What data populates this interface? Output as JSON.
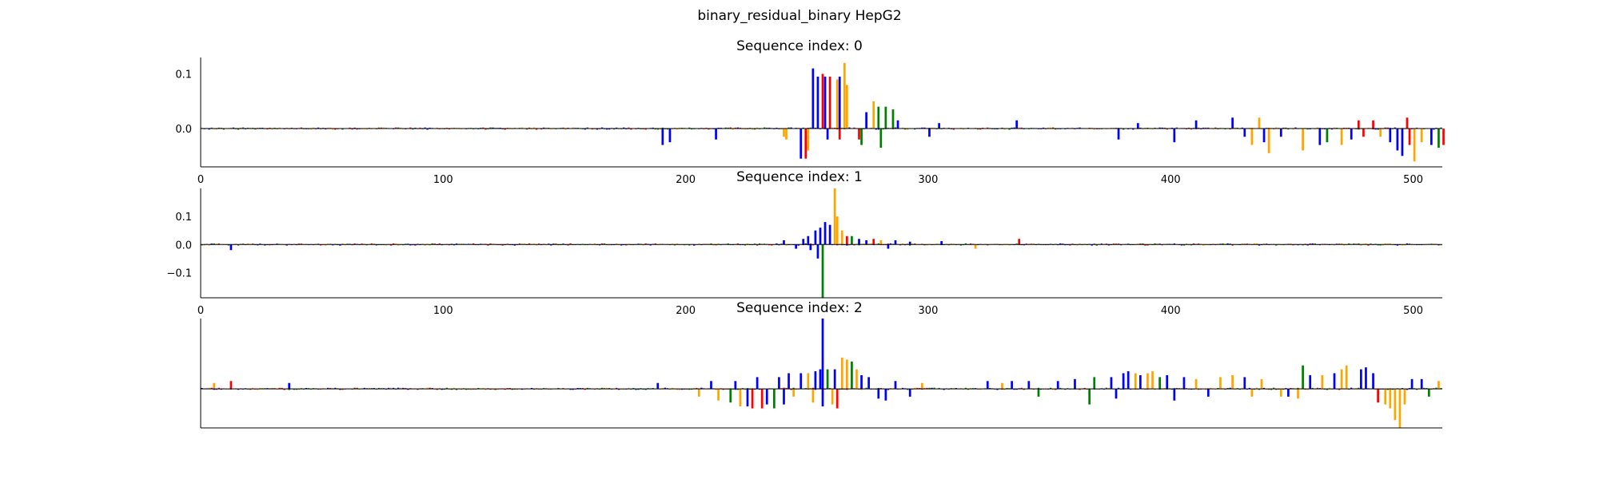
{
  "figure": {
    "suptitle": "binary_residual_binary HepG2"
  },
  "colors": {
    "A": "#008000",
    "C": "#0000ff",
    "G": "#ffa500",
    "T": "#ff0000",
    "axis": "#000000",
    "baseline": "#000000"
  },
  "chart_data": [
    {
      "type": "bar",
      "title": "Sequence index: 0",
      "xlim": [
        0,
        512
      ],
      "ylim": [
        -0.07,
        0.13
      ],
      "xticks": [
        "0",
        "100",
        "200",
        "300",
        "400",
        "500"
      ],
      "yticks": [
        "0.0",
        "0.1"
      ],
      "show_x_axis": true,
      "show_y_axis_labels": true,
      "peaks": [
        {
          "x": 190,
          "value": -0.03,
          "base": "C"
        },
        {
          "x": 193,
          "value": -0.025,
          "base": "C"
        },
        {
          "x": 212,
          "value": -0.02,
          "base": "C"
        },
        {
          "x": 240,
          "value": -0.015,
          "base": "G"
        },
        {
          "x": 241,
          "value": -0.02,
          "base": "G"
        },
        {
          "x": 247,
          "value": -0.055,
          "base": "C"
        },
        {
          "x": 249,
          "value": -0.055,
          "base": "T"
        },
        {
          "x": 250,
          "value": -0.04,
          "base": "G"
        },
        {
          "x": 252,
          "value": 0.11,
          "base": "C"
        },
        {
          "x": 254,
          "value": 0.095,
          "base": "C"
        },
        {
          "x": 256,
          "value": 0.1,
          "base": "T"
        },
        {
          "x": 257,
          "value": 0.095,
          "base": "C"
        },
        {
          "x": 259,
          "value": 0.095,
          "base": "T"
        },
        {
          "x": 262,
          "value": 0.09,
          "base": "G"
        },
        {
          "x": 263,
          "value": 0.095,
          "base": "C"
        },
        {
          "x": 265,
          "value": 0.12,
          "base": "G"
        },
        {
          "x": 266,
          "value": 0.08,
          "base": "G"
        },
        {
          "x": 258,
          "value": -0.02,
          "base": "C"
        },
        {
          "x": 263,
          "value": -0.02,
          "base": "T"
        },
        {
          "x": 271,
          "value": -0.02,
          "base": "T"
        },
        {
          "x": 272,
          "value": -0.03,
          "base": "A"
        },
        {
          "x": 274,
          "value": 0.03,
          "base": "C"
        },
        {
          "x": 277,
          "value": 0.05,
          "base": "G"
        },
        {
          "x": 279,
          "value": 0.04,
          "base": "A"
        },
        {
          "x": 280,
          "value": -0.035,
          "base": "A"
        },
        {
          "x": 282,
          "value": 0.04,
          "base": "A"
        },
        {
          "x": 285,
          "value": 0.035,
          "base": "A"
        },
        {
          "x": 287,
          "value": 0.015,
          "base": "C"
        },
        {
          "x": 300,
          "value": -0.015,
          "base": "C"
        },
        {
          "x": 304,
          "value": 0.01,
          "base": "C"
        },
        {
          "x": 336,
          "value": 0.015,
          "base": "C"
        },
        {
          "x": 378,
          "value": -0.02,
          "base": "C"
        },
        {
          "x": 386,
          "value": 0.01,
          "base": "C"
        },
        {
          "x": 401,
          "value": -0.025,
          "base": "C"
        },
        {
          "x": 410,
          "value": 0.015,
          "base": "C"
        },
        {
          "x": 425,
          "value": 0.02,
          "base": "C"
        },
        {
          "x": 430,
          "value": -0.015,
          "base": "C"
        },
        {
          "x": 436,
          "value": 0.02,
          "base": "G"
        },
        {
          "x": 433,
          "value": -0.03,
          "base": "G"
        },
        {
          "x": 438,
          "value": -0.025,
          "base": "C"
        },
        {
          "x": 440,
          "value": -0.045,
          "base": "G"
        },
        {
          "x": 445,
          "value": -0.015,
          "base": "C"
        },
        {
          "x": 454,
          "value": -0.04,
          "base": "G"
        },
        {
          "x": 461,
          "value": -0.03,
          "base": "C"
        },
        {
          "x": 464,
          "value": -0.025,
          "base": "A"
        },
        {
          "x": 470,
          "value": -0.03,
          "base": "G"
        },
        {
          "x": 474,
          "value": -0.02,
          "base": "C"
        },
        {
          "x": 477,
          "value": 0.015,
          "base": "T"
        },
        {
          "x": 479,
          "value": -0.015,
          "base": "T"
        },
        {
          "x": 483,
          "value": 0.015,
          "base": "T"
        },
        {
          "x": 486,
          "value": -0.015,
          "base": "G"
        },
        {
          "x": 490,
          "value": -0.025,
          "base": "C"
        },
        {
          "x": 493,
          "value": -0.04,
          "base": "C"
        },
        {
          "x": 495,
          "value": -0.05,
          "base": "C"
        },
        {
          "x": 497,
          "value": 0.02,
          "base": "T"
        },
        {
          "x": 498,
          "value": -0.03,
          "base": "T"
        },
        {
          "x": 500,
          "value": -0.06,
          "base": "G"
        },
        {
          "x": 503,
          "value": -0.025,
          "base": "G"
        },
        {
          "x": 507,
          "value": -0.03,
          "base": "C"
        },
        {
          "x": 510,
          "value": -0.035,
          "base": "A"
        },
        {
          "x": 512,
          "value": -0.03,
          "base": "T"
        }
      ]
    },
    {
      "type": "bar",
      "title": "Sequence index: 1",
      "xlim": [
        0,
        512
      ],
      "ylim": [
        -0.19,
        0.2
      ],
      "xticks": [
        "0",
        "100",
        "200",
        "300",
        "400",
        "500"
      ],
      "yticks": [
        "−0.1",
        "0.0",
        "0.1"
      ],
      "show_x_axis": true,
      "show_y_axis_labels": true,
      "peaks": [
        {
          "x": 12,
          "value": -0.02,
          "base": "C"
        },
        {
          "x": 240,
          "value": 0.015,
          "base": "C"
        },
        {
          "x": 245,
          "value": -0.015,
          "base": "C"
        },
        {
          "x": 248,
          "value": 0.02,
          "base": "C"
        },
        {
          "x": 250,
          "value": 0.03,
          "base": "C"
        },
        {
          "x": 251,
          "value": -0.02,
          "base": "C"
        },
        {
          "x": 253,
          "value": 0.05,
          "base": "C"
        },
        {
          "x": 254,
          "value": -0.05,
          "base": "C"
        },
        {
          "x": 255,
          "value": 0.06,
          "base": "C"
        },
        {
          "x": 256,
          "value": -0.19,
          "base": "A"
        },
        {
          "x": 257,
          "value": 0.08,
          "base": "C"
        },
        {
          "x": 259,
          "value": 0.07,
          "base": "C"
        },
        {
          "x": 261,
          "value": 0.2,
          "base": "G"
        },
        {
          "x": 262,
          "value": 0.1,
          "base": "G"
        },
        {
          "x": 264,
          "value": 0.05,
          "base": "G"
        },
        {
          "x": 266,
          "value": 0.03,
          "base": "T"
        },
        {
          "x": 268,
          "value": 0.03,
          "base": "A"
        },
        {
          "x": 271,
          "value": 0.02,
          "base": "C"
        },
        {
          "x": 274,
          "value": 0.015,
          "base": "C"
        },
        {
          "x": 277,
          "value": 0.02,
          "base": "T"
        },
        {
          "x": 280,
          "value": 0.015,
          "base": "G"
        },
        {
          "x": 283,
          "value": -0.015,
          "base": "C"
        },
        {
          "x": 286,
          "value": 0.015,
          "base": "C"
        },
        {
          "x": 292,
          "value": 0.01,
          "base": "C"
        },
        {
          "x": 305,
          "value": 0.012,
          "base": "C"
        },
        {
          "x": 319,
          "value": -0.015,
          "base": "G"
        },
        {
          "x": 337,
          "value": 0.02,
          "base": "T"
        }
      ]
    },
    {
      "type": "bar",
      "title": "Sequence index: 2",
      "xlim": [
        0,
        512
      ],
      "ylim": [
        -0.1,
        0.18
      ],
      "xticks": [],
      "yticks": [],
      "show_x_axis": false,
      "show_y_axis_labels": false,
      "peaks": [
        {
          "x": 5,
          "value": 0.015,
          "base": "G"
        },
        {
          "x": 12,
          "value": 0.02,
          "base": "T"
        },
        {
          "x": 36,
          "value": 0.015,
          "base": "C"
        },
        {
          "x": 188,
          "value": 0.015,
          "base": "C"
        },
        {
          "x": 205,
          "value": -0.02,
          "base": "G"
        },
        {
          "x": 210,
          "value": 0.02,
          "base": "C"
        },
        {
          "x": 213,
          "value": -0.03,
          "base": "G"
        },
        {
          "x": 218,
          "value": -0.035,
          "base": "A"
        },
        {
          "x": 220,
          "value": 0.02,
          "base": "C"
        },
        {
          "x": 222,
          "value": -0.045,
          "base": "G"
        },
        {
          "x": 225,
          "value": -0.045,
          "base": "C"
        },
        {
          "x": 227,
          "value": -0.05,
          "base": "T"
        },
        {
          "x": 229,
          "value": 0.03,
          "base": "C"
        },
        {
          "x": 231,
          "value": -0.05,
          "base": "T"
        },
        {
          "x": 233,
          "value": -0.04,
          "base": "C"
        },
        {
          "x": 236,
          "value": -0.05,
          "base": "A"
        },
        {
          "x": 238,
          "value": 0.03,
          "base": "C"
        },
        {
          "x": 240,
          "value": -0.04,
          "base": "C"
        },
        {
          "x": 242,
          "value": 0.04,
          "base": "C"
        },
        {
          "x": 244,
          "value": -0.02,
          "base": "G"
        },
        {
          "x": 247,
          "value": 0.04,
          "base": "C"
        },
        {
          "x": 250,
          "value": 0.04,
          "base": "G"
        },
        {
          "x": 252,
          "value": -0.035,
          "base": "G"
        },
        {
          "x": 253,
          "value": 0.045,
          "base": "C"
        },
        {
          "x": 255,
          "value": 0.05,
          "base": "C"
        },
        {
          "x": 256,
          "value": -0.045,
          "base": "C"
        },
        {
          "x": 258,
          "value": 0.05,
          "base": "A"
        },
        {
          "x": 260,
          "value": -0.04,
          "base": "G"
        },
        {
          "x": 261,
          "value": 0.05,
          "base": "C"
        },
        {
          "x": 262,
          "value": -0.05,
          "base": "T"
        },
        {
          "x": 256,
          "value": 0.18,
          "base": "C"
        },
        {
          "x": 264,
          "value": 0.08,
          "base": "G"
        },
        {
          "x": 266,
          "value": 0.075,
          "base": "G"
        },
        {
          "x": 268,
          "value": 0.07,
          "base": "A"
        },
        {
          "x": 270,
          "value": 0.05,
          "base": "G"
        },
        {
          "x": 272,
          "value": 0.035,
          "base": "C"
        },
        {
          "x": 275,
          "value": 0.03,
          "base": "C"
        },
        {
          "x": 279,
          "value": -0.025,
          "base": "C"
        },
        {
          "x": 282,
          "value": -0.03,
          "base": "C"
        },
        {
          "x": 286,
          "value": 0.02,
          "base": "C"
        },
        {
          "x": 292,
          "value": -0.02,
          "base": "C"
        },
        {
          "x": 297,
          "value": 0.015,
          "base": "G"
        },
        {
          "x": 324,
          "value": 0.02,
          "base": "C"
        },
        {
          "x": 330,
          "value": 0.015,
          "base": "G"
        },
        {
          "x": 334,
          "value": 0.02,
          "base": "C"
        },
        {
          "x": 341,
          "value": 0.02,
          "base": "C"
        },
        {
          "x": 345,
          "value": -0.02,
          "base": "A"
        },
        {
          "x": 353,
          "value": 0.02,
          "base": "C"
        },
        {
          "x": 360,
          "value": 0.025,
          "base": "C"
        },
        {
          "x": 366,
          "value": -0.04,
          "base": "A"
        },
        {
          "x": 368,
          "value": 0.03,
          "base": "A"
        },
        {
          "x": 375,
          "value": 0.03,
          "base": "C"
        },
        {
          "x": 377,
          "value": -0.025,
          "base": "C"
        },
        {
          "x": 380,
          "value": 0.04,
          "base": "C"
        },
        {
          "x": 382,
          "value": 0.045,
          "base": "C"
        },
        {
          "x": 385,
          "value": 0.04,
          "base": "G"
        },
        {
          "x": 387,
          "value": 0.035,
          "base": "C"
        },
        {
          "x": 390,
          "value": 0.04,
          "base": "G"
        },
        {
          "x": 392,
          "value": 0.045,
          "base": "G"
        },
        {
          "x": 395,
          "value": 0.03,
          "base": "A"
        },
        {
          "x": 398,
          "value": 0.035,
          "base": "C"
        },
        {
          "x": 401,
          "value": -0.03,
          "base": "C"
        },
        {
          "x": 405,
          "value": 0.03,
          "base": "C"
        },
        {
          "x": 410,
          "value": 0.025,
          "base": "G"
        },
        {
          "x": 415,
          "value": -0.02,
          "base": "C"
        },
        {
          "x": 420,
          "value": 0.03,
          "base": "G"
        },
        {
          "x": 425,
          "value": 0.035,
          "base": "G"
        },
        {
          "x": 430,
          "value": 0.03,
          "base": "C"
        },
        {
          "x": 433,
          "value": -0.02,
          "base": "G"
        },
        {
          "x": 437,
          "value": 0.025,
          "base": "G"
        },
        {
          "x": 445,
          "value": -0.02,
          "base": "G"
        },
        {
          "x": 448,
          "value": -0.02,
          "base": "C"
        },
        {
          "x": 452,
          "value": -0.025,
          "base": "G"
        },
        {
          "x": 454,
          "value": 0.06,
          "base": "A"
        },
        {
          "x": 457,
          "value": 0.035,
          "base": "C"
        },
        {
          "x": 462,
          "value": 0.035,
          "base": "G"
        },
        {
          "x": 467,
          "value": 0.04,
          "base": "C"
        },
        {
          "x": 470,
          "value": 0.05,
          "base": "G"
        },
        {
          "x": 472,
          "value": 0.06,
          "base": "G"
        },
        {
          "x": 478,
          "value": 0.05,
          "base": "C"
        },
        {
          "x": 480,
          "value": 0.055,
          "base": "C"
        },
        {
          "x": 483,
          "value": 0.04,
          "base": "C"
        },
        {
          "x": 485,
          "value": -0.035,
          "base": "T"
        },
        {
          "x": 488,
          "value": -0.04,
          "base": "G"
        },
        {
          "x": 490,
          "value": -0.05,
          "base": "G"
        },
        {
          "x": 492,
          "value": -0.08,
          "base": "G"
        },
        {
          "x": 494,
          "value": -0.1,
          "base": "G"
        },
        {
          "x": 496,
          "value": -0.04,
          "base": "G"
        },
        {
          "x": 499,
          "value": 0.025,
          "base": "C"
        },
        {
          "x": 503,
          "value": 0.025,
          "base": "C"
        },
        {
          "x": 506,
          "value": -0.02,
          "base": "A"
        },
        {
          "x": 510,
          "value": 0.02,
          "base": "G"
        }
      ]
    }
  ]
}
